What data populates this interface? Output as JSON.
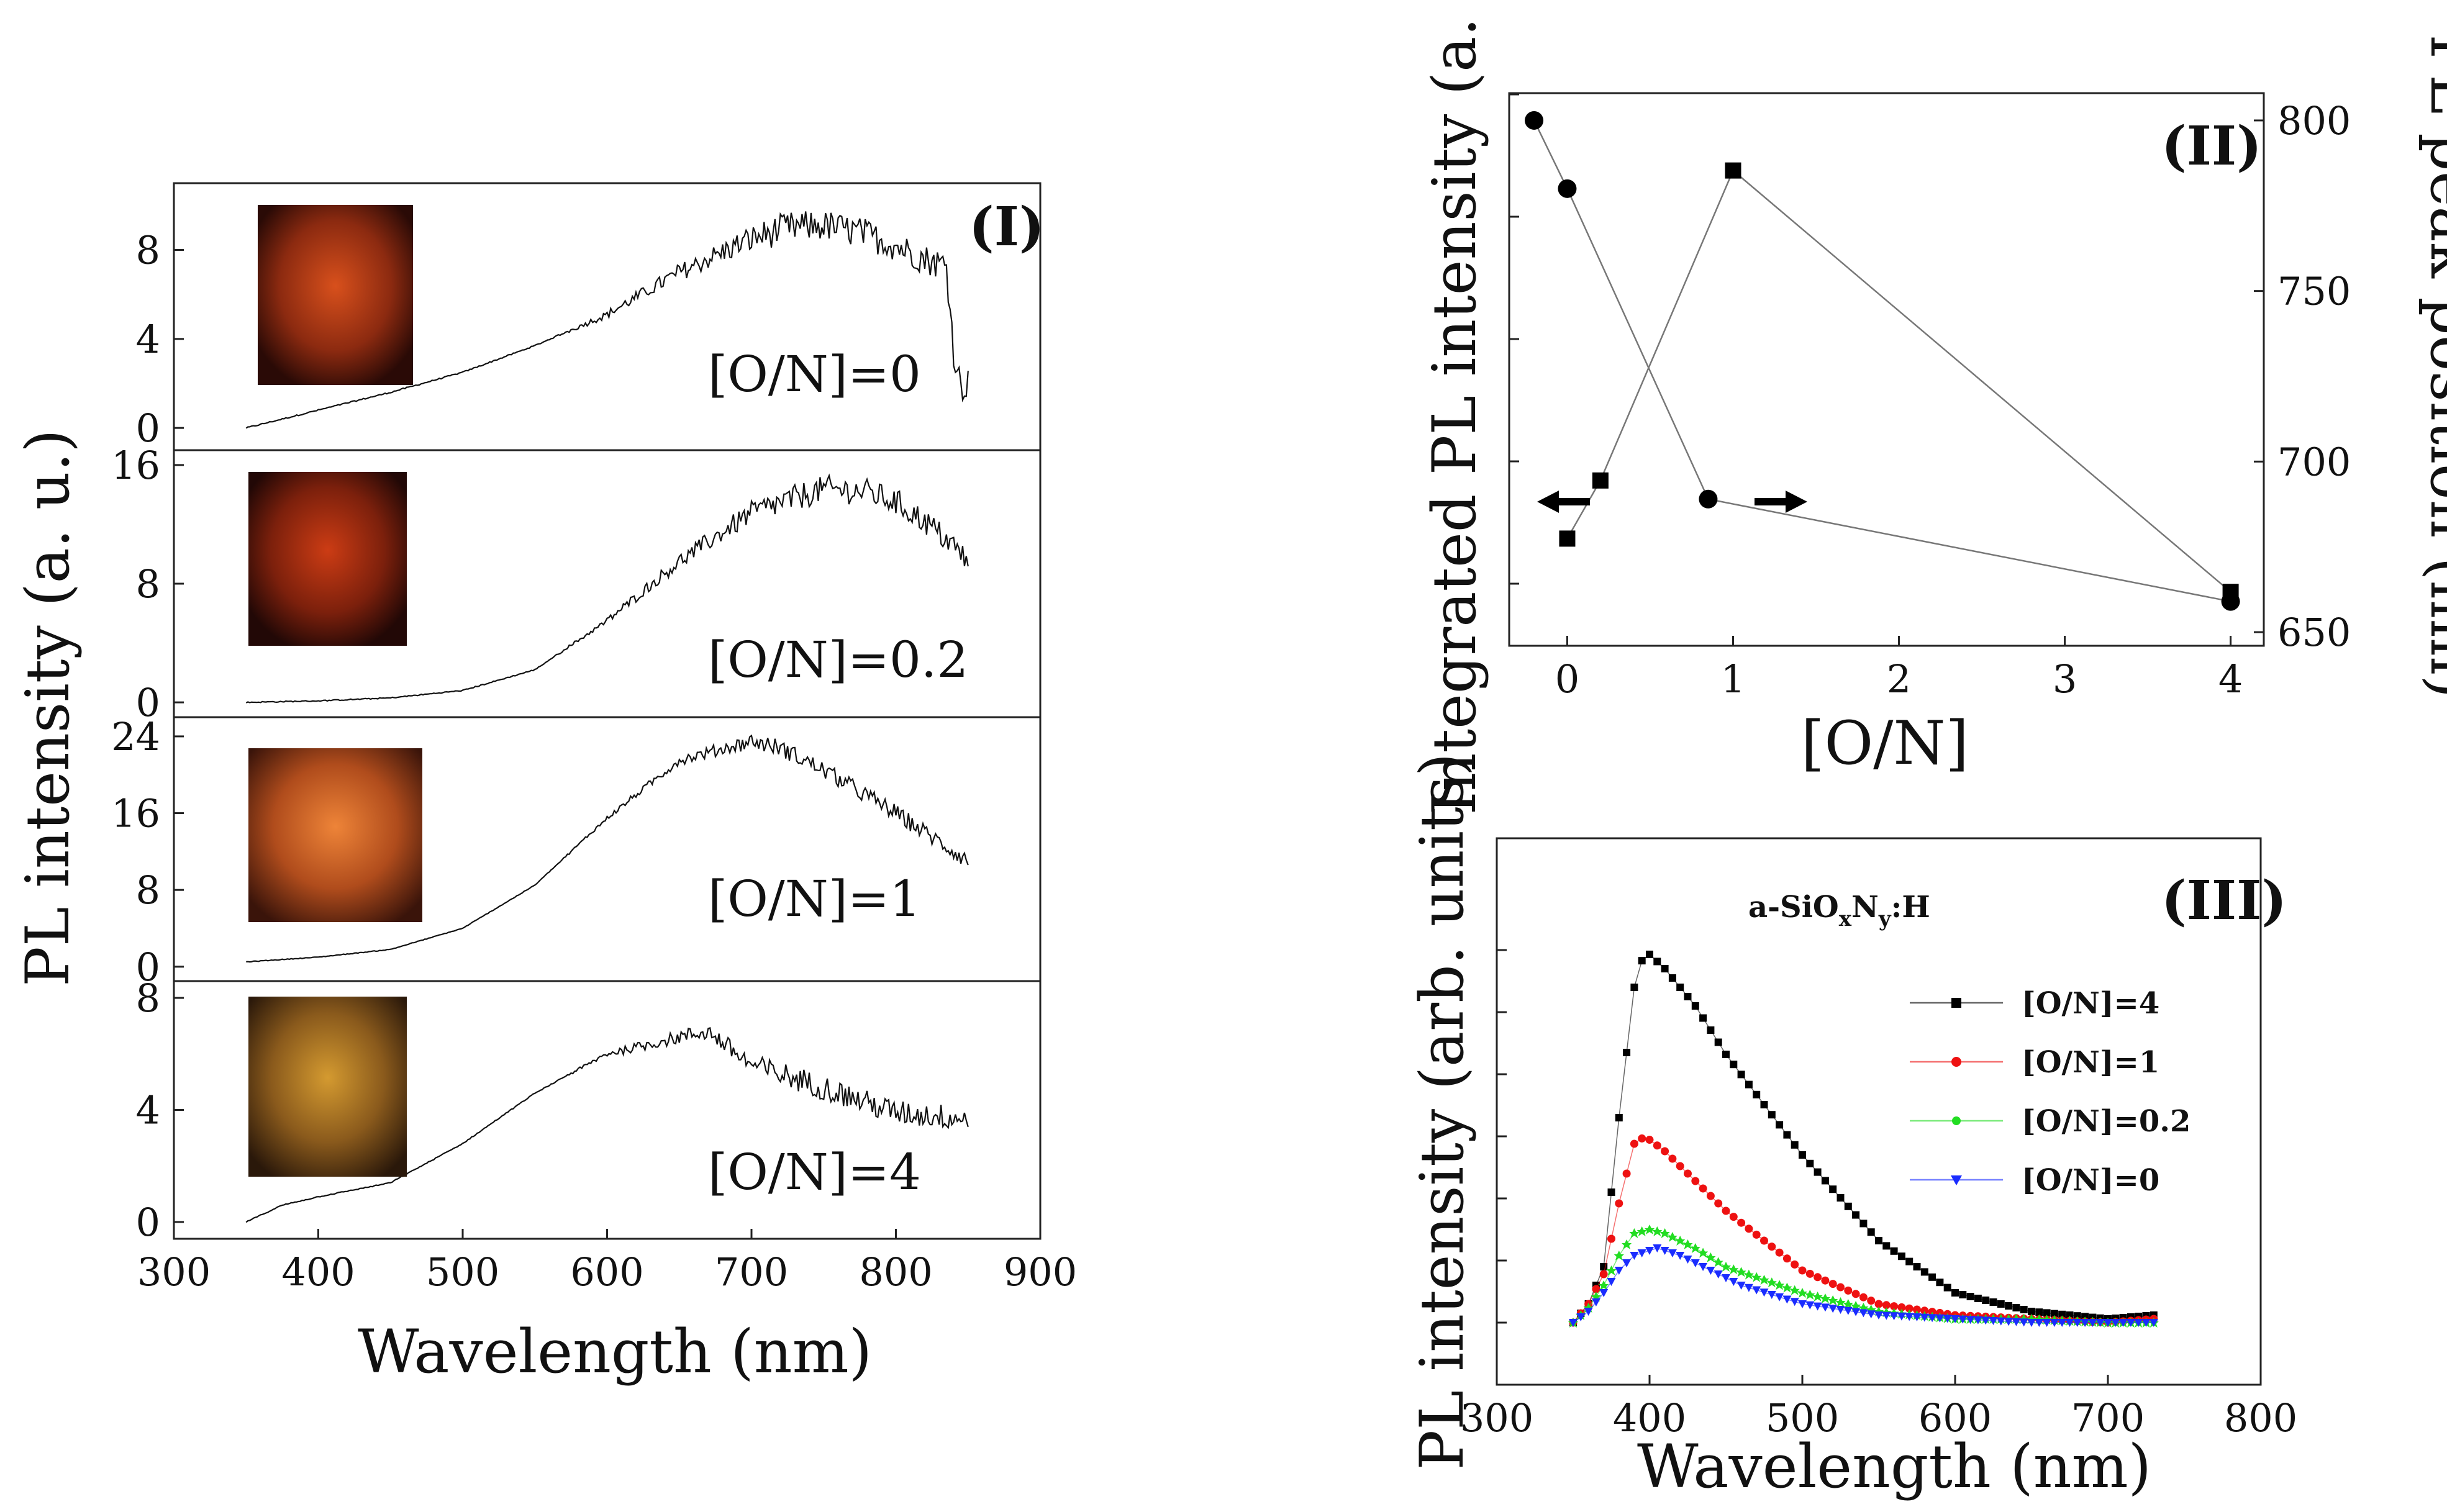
{
  "chart_data": [
    {
      "panel": "(I)",
      "type": "line",
      "xlabel": "Wavelength (nm)",
      "ylabel": "PL intensity (a. u.)",
      "xlim": [
        300,
        900
      ],
      "xticks": [
        "300",
        "400",
        "500",
        "600",
        "700",
        "800",
        "900"
      ],
      "subplots": [
        {
          "label": "[O/N]=0",
          "ylim": [
            -1,
            11
          ],
          "yticks": [
            {
              "v": 0,
              "t": "0"
            },
            {
              "v": 4,
              "t": "4"
            },
            {
              "v": 8,
              "t": "8"
            }
          ],
          "x": [
            350,
            400,
            450,
            500,
            550,
            600,
            650,
            700,
            725,
            750,
            775,
            800,
            820,
            835,
            840,
            845,
            850
          ],
          "y": [
            0,
            0.8,
            1.6,
            2.5,
            3.7,
            5.1,
            7,
            8.5,
            9,
            9.1,
            8.8,
            8.2,
            7.6,
            7.3,
            3.5,
            1.8,
            2
          ],
          "noise": 0.7,
          "image_color": "#d04417"
        },
        {
          "label": "[O/N]=0.2",
          "ylim": [
            -1,
            17
          ],
          "yticks": [
            {
              "v": 0,
              "t": "0"
            },
            {
              "v": 8,
              "t": "8"
            },
            {
              "v": 16,
              "t": "16"
            }
          ],
          "x": [
            350,
            400,
            450,
            500,
            550,
            600,
            650,
            700,
            750,
            780,
            800,
            820,
            835,
            850
          ],
          "y": [
            0,
            0.1,
            0.3,
            0.8,
            2.2,
            5.5,
            9.5,
            12.8,
            14.4,
            14.2,
            13.5,
            12.2,
            11,
            9.5
          ],
          "noise": 0.9,
          "image_color": "#c83a15"
        },
        {
          "label": "[O/N]=1",
          "ylim": [
            -1.5,
            26
          ],
          "yticks": [
            {
              "v": 0,
              "t": "0"
            },
            {
              "v": 8,
              "t": "8"
            },
            {
              "v": 16,
              "t": "16"
            },
            {
              "v": 24,
              "t": "24"
            }
          ],
          "x": [
            350,
            400,
            450,
            500,
            550,
            600,
            650,
            700,
            720,
            750,
            800,
            850
          ],
          "y": [
            0.5,
            1,
            1.8,
            4,
            8.5,
            15.5,
            21.5,
            23.5,
            22.8,
            20.5,
            16,
            11
          ],
          "noise": 0.9,
          "image_color": "#e0722e"
        },
        {
          "label": "[O/N]=4",
          "ylim": [
            -0.6,
            8.6
          ],
          "yticks": [
            {
              "v": 0,
              "t": "0"
            },
            {
              "v": 4,
              "t": "4"
            },
            {
              "v": 8,
              "t": "8"
            }
          ],
          "x": [
            350,
            375,
            400,
            450,
            500,
            550,
            600,
            650,
            670,
            700,
            750,
            800,
            850
          ],
          "y": [
            0,
            0.6,
            0.9,
            1.4,
            2.8,
            4.6,
            6,
            6.6,
            6.8,
            5.6,
            4.8,
            3.9,
            3.7
          ],
          "noise": 0.45,
          "image_color": "#c88a2a"
        }
      ],
      "images_note": "PL photographs"
    },
    {
      "panel": "(II)",
      "type": "scatter",
      "xlabel": "[O/N]",
      "ylabel_left": "Integrated PL intensity (a. u.)",
      "ylabel_right": "PL peak position (nm)",
      "xlim": [
        -0.35,
        4.2
      ],
      "xticks": [
        "0",
        "1",
        "2",
        "3",
        "4"
      ],
      "ylim_right": [
        646,
        808
      ],
      "yticks_right": [
        "650",
        "700",
        "750",
        "800"
      ],
      "series": [
        {
          "name": "Integrated PL intensity",
          "marker": "square",
          "axis": "left",
          "x": [
            0,
            0.2,
            1,
            4
          ],
          "y": [
            0.17,
            0.29,
            0.93,
            0.06
          ]
        },
        {
          "name": "PL peak position",
          "marker": "circle",
          "axis": "right",
          "x": [
            -0.2,
            0,
            0.85,
            4
          ],
          "y": [
            800,
            780,
            689,
            659
          ]
        }
      ]
    },
    {
      "panel": "(III)",
      "type": "line",
      "annotation": "a-SiO",
      "annotation_sub1": "x",
      "annotation_mid": "N",
      "annotation_sub2": "y",
      "annotation_end": ":H",
      "xlabel": "Wavelength (nm)",
      "ylabel": "PL intensity (arb. units)",
      "xlim": [
        300,
        800
      ],
      "xticks": [
        "300",
        "400",
        "500",
        "600",
        "700",
        "800"
      ],
      "ylim": [
        0,
        1.15
      ],
      "legend_position": "upper-right",
      "series": [
        {
          "name": "[O/N]=4",
          "color": "#000000",
          "marker": "square",
          "x": [
            350,
            360,
            370,
            380,
            390,
            397,
            410,
            430,
            450,
            500,
            550,
            600,
            650,
            700,
            730
          ],
          "y": [
            0,
            0.05,
            0.15,
            0.55,
            0.9,
            1.0,
            0.95,
            0.85,
            0.72,
            0.45,
            0.22,
            0.08,
            0.03,
            0.01,
            0.02
          ]
        },
        {
          "name": "[O/N]=1",
          "color": "#ee1111",
          "marker": "circle",
          "x": [
            350,
            360,
            370,
            380,
            390,
            397,
            410,
            430,
            450,
            500,
            550,
            600,
            650,
            700,
            730
          ],
          "y": [
            0,
            0.05,
            0.13,
            0.32,
            0.48,
            0.5,
            0.46,
            0.38,
            0.3,
            0.14,
            0.05,
            0.02,
            0.01,
            0,
            0.01
          ]
        },
        {
          "name": "[O/N]=0.2",
          "color": "#22dd22",
          "marker": "star",
          "x": [
            350,
            360,
            370,
            380,
            390,
            400,
            410,
            430,
            450,
            500,
            550,
            600,
            650,
            700,
            730
          ],
          "y": [
            0,
            0.04,
            0.1,
            0.18,
            0.24,
            0.25,
            0.24,
            0.2,
            0.15,
            0.08,
            0.03,
            0.01,
            0.01,
            0,
            0
          ]
        },
        {
          "name": "[O/N]=0",
          "color": "#1a2cff",
          "marker": "triangle-down",
          "x": [
            350,
            360,
            370,
            380,
            390,
            405,
            420,
            440,
            460,
            500,
            550,
            600,
            650,
            700,
            730
          ],
          "y": [
            0,
            0.03,
            0.08,
            0.14,
            0.18,
            0.2,
            0.18,
            0.14,
            0.1,
            0.05,
            0.02,
            0.01,
            0,
            0,
            0
          ]
        }
      ]
    }
  ]
}
